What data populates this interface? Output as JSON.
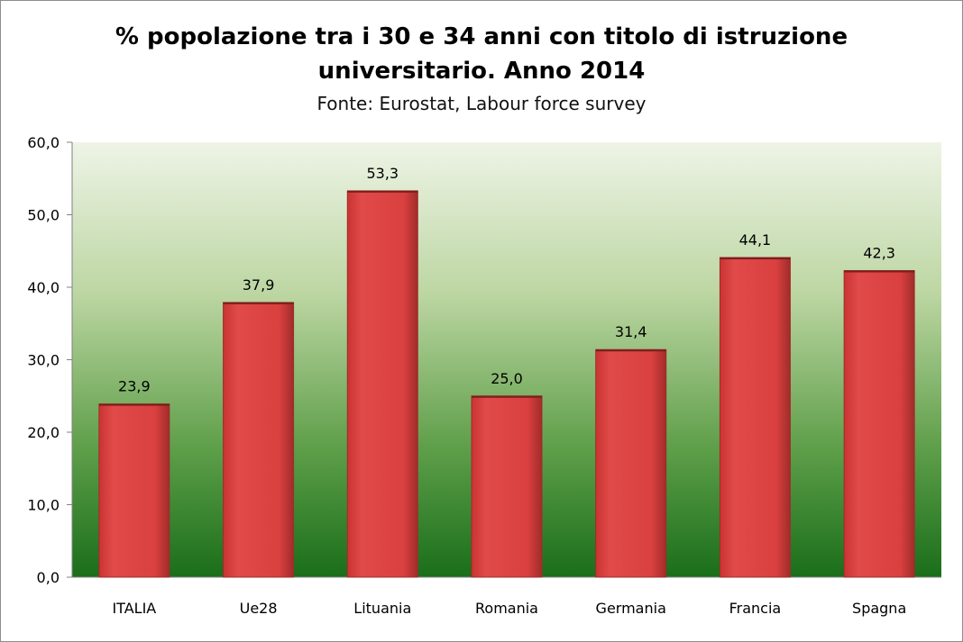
{
  "chart_data": {
    "type": "bar",
    "title_lines": [
      "% popolazione tra i 30 e 34 anni con titolo di istruzione",
      "universitario. Anno 2014"
    ],
    "subtitle": "Fonte: Eurostat, Labour force survey",
    "categories": [
      "ITALIA",
      "Ue28",
      "Lituania",
      "Romania",
      "Germania",
      "Francia",
      "Spagna"
    ],
    "values": [
      23.9,
      37.9,
      53.3,
      25.0,
      31.4,
      44.1,
      42.3
    ],
    "data_labels": [
      "23,9",
      "37,9",
      "53,3",
      "25,0",
      "31,4",
      "44,1",
      "42,3"
    ],
    "ylim": [
      0,
      60
    ],
    "yticks": [
      0,
      10,
      20,
      30,
      40,
      50,
      60
    ],
    "ytick_labels": [
      "0,0",
      "10,0",
      "20,0",
      "30,0",
      "40,0",
      "50,0",
      "60,0"
    ],
    "grid": false,
    "legend": "none",
    "colors": {
      "bar": "#d9403f",
      "bar_dark": "#a02c2a",
      "plot_bg_top": "#eef4e6",
      "plot_bg_bottom": "#1a6e1a"
    }
  }
}
